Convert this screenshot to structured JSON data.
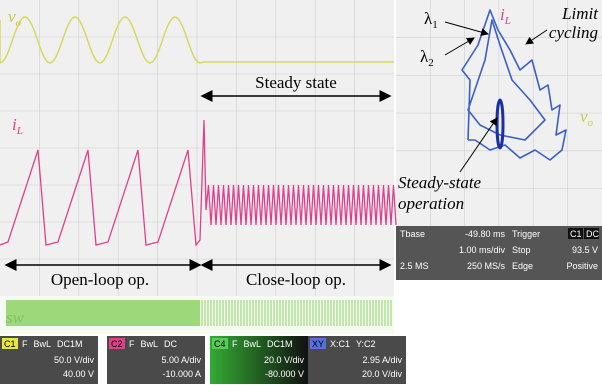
{
  "time_plot": {
    "vo": {
      "symbol": "v",
      "subscript": "o"
    },
    "il": {
      "symbol": "i",
      "subscript": "L"
    },
    "sw": "sw",
    "steady": "Steady state",
    "open": "Open-loop op.",
    "close": "Close-loop op."
  },
  "xy_plot": {
    "lambda1": {
      "symbol": "λ",
      "subscript": "1"
    },
    "lambda2": {
      "symbol": "λ",
      "subscript": "2"
    },
    "il": {
      "symbol": "i",
      "subscript": "L"
    },
    "vo": {
      "symbol": "v",
      "subscript": "o"
    },
    "limit": [
      "Limit",
      "cycling"
    ],
    "steady_op": [
      "Steady-state",
      "operation"
    ]
  },
  "timebase": {
    "rows": [
      [
        "Tbase",
        "-49.80 ms",
        "Trigger",
        "C1",
        "DC"
      ],
      [
        "",
        "1.00 ms/div",
        "Stop",
        "",
        "93.5 V"
      ],
      [
        "2.5 MS",
        "250 MS/s",
        "Edge",
        "",
        "Positive"
      ]
    ]
  },
  "channels": [
    {
      "name": "C1",
      "flags": [
        "F",
        "BwL",
        "DC1M"
      ],
      "scale": "50.0 V/div",
      "offset": "40.00 V"
    },
    {
      "name": "C2",
      "flags": [
        "F",
        "BwL",
        "DC"
      ],
      "scale": "5.00 A/div",
      "offset": "-10.000 A"
    },
    {
      "name": "C4",
      "flags": [
        "F",
        "BwL",
        "DC1M"
      ],
      "scale": "20.0 V/div",
      "offset": "-80.000 V"
    },
    {
      "name": "XY",
      "flags": [
        "X:C1",
        "Y:C2"
      ],
      "scale": "2.95 A/div",
      "offset": "20.0 V/div"
    }
  ]
}
